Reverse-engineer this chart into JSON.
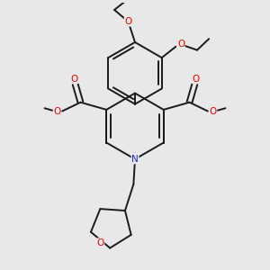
{
  "background_color": "#e8e8e8",
  "bond_color": "#1a1a1a",
  "bond_width": 1.4,
  "o_color": "#ee0000",
  "n_color": "#2222cc",
  "figsize": [
    3.0,
    3.0
  ],
  "dpi": 100,
  "xlim": [
    -4.5,
    4.5
  ],
  "ylim": [
    -4.8,
    4.2
  ]
}
